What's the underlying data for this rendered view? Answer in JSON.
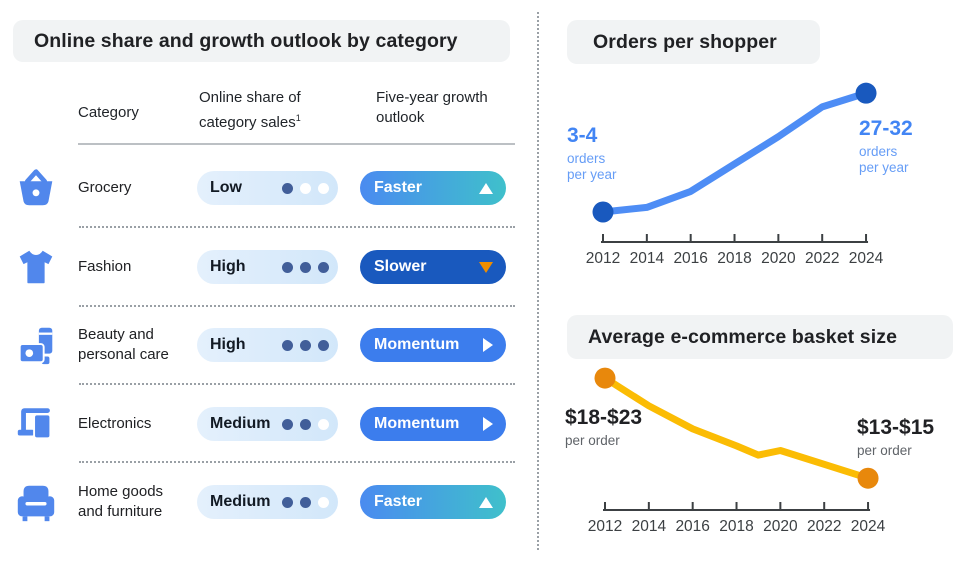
{
  "left_panel": {
    "title": "Online share and growth outlook by category",
    "header": {
      "category": "Category",
      "share": "Online share of category sales",
      "share_sup": "1",
      "outlook": "Five-year growth outlook"
    },
    "rows": [
      {
        "icon": "basket-icon",
        "category": "Grocery",
        "share_level": "Low",
        "dots_filled": 1,
        "dots_total": 3,
        "outlook": "Faster",
        "outlook_direction": "up"
      },
      {
        "icon": "tshirt-icon",
        "category": "Fashion",
        "share_level": "High",
        "dots_filled": 3,
        "dots_total": 3,
        "outlook": "Slower",
        "outlook_direction": "down"
      },
      {
        "icon": "cosmetics-icon",
        "category": "Beauty and personal care",
        "share_level": "High",
        "dots_filled": 3,
        "dots_total": 3,
        "outlook": "Momentum",
        "outlook_direction": "right"
      },
      {
        "icon": "devices-icon",
        "category": "Electronics",
        "share_level": "Medium",
        "dots_filled": 2,
        "dots_total": 3,
        "outlook": "Momentum",
        "outlook_direction": "right"
      },
      {
        "icon": "armchair-icon",
        "category": "Home goods and furniture",
        "share_level": "Medium",
        "dots_filled": 2,
        "dots_total": 3,
        "outlook": "Faster",
        "outlook_direction": "up"
      }
    ]
  },
  "charts": {
    "orders": {
      "title": "Orders per shopper",
      "start_label": {
        "value": "3-4",
        "unit_line1": "orders",
        "unit_line2": "per year"
      },
      "end_label": {
        "value": "27-32",
        "unit_line1": "orders",
        "unit_line2": "per year"
      }
    },
    "basket": {
      "title": "Average e-commerce basket size",
      "start_label": {
        "value": "$18-$23",
        "unit": "per order"
      },
      "end_label": {
        "value": "$13-$15",
        "unit": "per order"
      }
    }
  },
  "chart_data": [
    {
      "type": "table",
      "title": "Online share and growth outlook by category",
      "columns": [
        "Category",
        "Online share of category sales¹",
        "Five-year growth outlook"
      ],
      "rows": [
        [
          "Grocery",
          "Low (1 of 3)",
          "Faster ▲"
        ],
        [
          "Fashion",
          "High (3 of 3)",
          "Slower ▼"
        ],
        [
          "Beauty and personal care",
          "High (3 of 3)",
          "Momentum ▶"
        ],
        [
          "Electronics",
          "Medium (2 of 3)",
          "Momentum ▶"
        ],
        [
          "Home goods and furniture",
          "Medium (2 of 3)",
          "Faster ▲"
        ]
      ]
    },
    {
      "type": "line",
      "title": "Orders per shopper",
      "xlabel": "",
      "ylabel": "",
      "x_ticks": [
        2012,
        2014,
        2016,
        2018,
        2020,
        2022,
        2024
      ],
      "x": [
        2012,
        2014,
        2016,
        2018,
        2020,
        2022,
        2024
      ],
      "values": [
        3.5,
        4.5,
        8,
        14,
        20,
        26.5,
        29.5
      ],
      "ylim": [
        0,
        35
      ],
      "grid": false,
      "annotations": [
        {
          "x": 2012,
          "text": "3-4 orders per year"
        },
        {
          "x": 2024,
          "text": "27-32 orders per year"
        }
      ],
      "line_color": "#4E8DF5",
      "endpoint_color": "#1959BE"
    },
    {
      "type": "line",
      "title": "Average e-commerce basket size",
      "xlabel": "",
      "ylabel": "",
      "x_ticks": [
        2012,
        2014,
        2016,
        2018,
        2020,
        2022,
        2024
      ],
      "x": [
        2012,
        2014,
        2016,
        2018,
        2019,
        2020,
        2022,
        2024
      ],
      "values": [
        20.5,
        18.7,
        17.2,
        16.1,
        15.5,
        15.8,
        14.9,
        14.0
      ],
      "ylim": [
        12,
        22
      ],
      "grid": false,
      "annotations": [
        {
          "x": 2012,
          "text": "$18-$23 per order"
        },
        {
          "x": 2024,
          "text": "$13-$15 per order"
        }
      ],
      "line_color": "#FBBC04",
      "endpoint_color": "#E8880C"
    }
  ],
  "colors": {
    "chip-bg": "#F1F3F4",
    "text-dark": "#202124",
    "icon-blue": "#5187EC",
    "share-pill-bg-start": "#E4F0FC",
    "share-pill-bg-end": "#D2E7FA",
    "dot-filled": "#415E99",
    "faster-start": "#4A8BF0",
    "faster-end": "#3FC0CB",
    "slower-bg": "#1959BE",
    "momentum-bg": "#3C7DED",
    "arrow-orange": "#EF8E00",
    "axis": "#3C4043",
    "ann-blue": "#4285F4",
    "ann-blue-light": "#669DF6",
    "ann-gray": "#5F6368",
    "separator": "#9AA0A6"
  }
}
